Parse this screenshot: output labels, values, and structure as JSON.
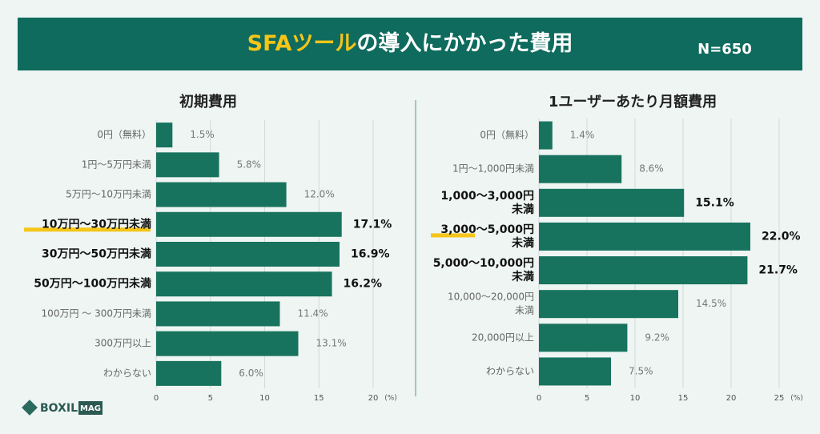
{
  "header": {
    "title_highlight": "SFAツール",
    "title": "の導入にかかった費用",
    "note": "N=650"
  },
  "logo": {
    "name": "BOXIL",
    "sub": "MAG"
  },
  "chart_data": [
    {
      "type": "barh",
      "title": "初期費用",
      "color": "#18735e",
      "grid": true,
      "unit": "(%)",
      "categories": [
        "0円（無料）",
        "1円～5万円未満",
        "5万円～10万円未満",
        "10万円～30万円未満",
        "30万円～50万円未満",
        "50万円～100万円未満",
        "100万円 ～ 300万円未満",
        "300万円以上",
        "わからない"
      ],
      "values": [
        1.5,
        5.8,
        12.0,
        17.1,
        16.9,
        16.2,
        11.4,
        13.1,
        6.0
      ],
      "value_labels": [
        "1.5%",
        "5.8%",
        "12.0%",
        "17.1%",
        "16.9%",
        "16.2%",
        "11.4%",
        "13.1%",
        "6.0%"
      ],
      "bold": [
        false,
        false,
        false,
        true,
        true,
        true,
        false,
        false,
        false
      ],
      "underlined": [
        false,
        false,
        false,
        true,
        false,
        false,
        false,
        false,
        false
      ],
      "xlim": [
        0,
        20
      ],
      "xticks": [
        0,
        5,
        10,
        15,
        20
      ]
    },
    {
      "type": "barh",
      "title": "1ユーザーあたり月額費用",
      "color": "#18735e",
      "grid": true,
      "unit": "(%)",
      "categories": [
        "0円（無料）",
        "1円～1,000円未満",
        [
          "1,000～3,000円",
          "未満"
        ],
        [
          "3,000～5,000円",
          "未満"
        ],
        [
          "5,000～10,000円",
          "未満"
        ],
        [
          "10,000～20,000円",
          "未満"
        ],
        "20,000円以上",
        "わからない"
      ],
      "values": [
        1.4,
        8.6,
        15.1,
        22.0,
        21.7,
        14.5,
        9.2,
        7.5
      ],
      "value_labels": [
        "1.4%",
        "8.6%",
        "15.1%",
        "22.0%",
        "21.7%",
        "14.5%",
        "9.2%",
        "7.5%"
      ],
      "bold": [
        false,
        false,
        true,
        true,
        true,
        false,
        false,
        false
      ],
      "underlined": [
        false,
        false,
        false,
        true,
        false,
        false,
        false,
        false
      ],
      "xlim": [
        0,
        25
      ],
      "xticks": [
        0,
        5,
        10,
        15,
        20,
        25
      ]
    }
  ]
}
